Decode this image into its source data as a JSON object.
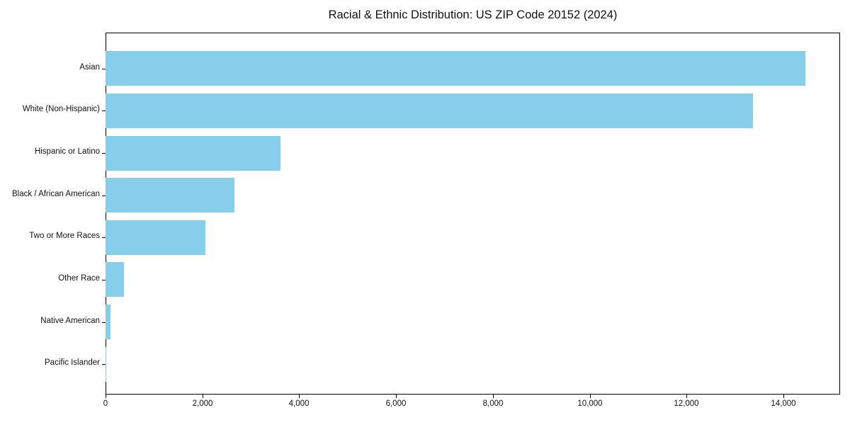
{
  "chart_data": {
    "type": "bar",
    "orientation": "horizontal",
    "title": "Racial & Ethnic Distribution: US ZIP Code 20152 (2024)",
    "categories": [
      "Asian",
      "White (Non-Hispanic)",
      "Hispanic or Latino",
      "Black / African American",
      "Two or More Races",
      "Other Race",
      "Native American",
      "Pacific Islander"
    ],
    "values": [
      14450,
      13370,
      3620,
      2660,
      2060,
      380,
      100,
      15
    ],
    "xlabel": "",
    "ylabel": "",
    "xlim": [
      0,
      15170
    ],
    "xticks": [
      0,
      2000,
      4000,
      6000,
      8000,
      10000,
      12000,
      14000
    ],
    "xtick_labels": [
      "0",
      "2,000",
      "4,000",
      "6,000",
      "8,000",
      "10,000",
      "12,000",
      "14,000"
    ],
    "grid": false,
    "legend": null,
    "colors": {
      "bar": "#87CEEB",
      "frame": "#000000",
      "text": "#111111",
      "background": "#ffffff"
    }
  }
}
